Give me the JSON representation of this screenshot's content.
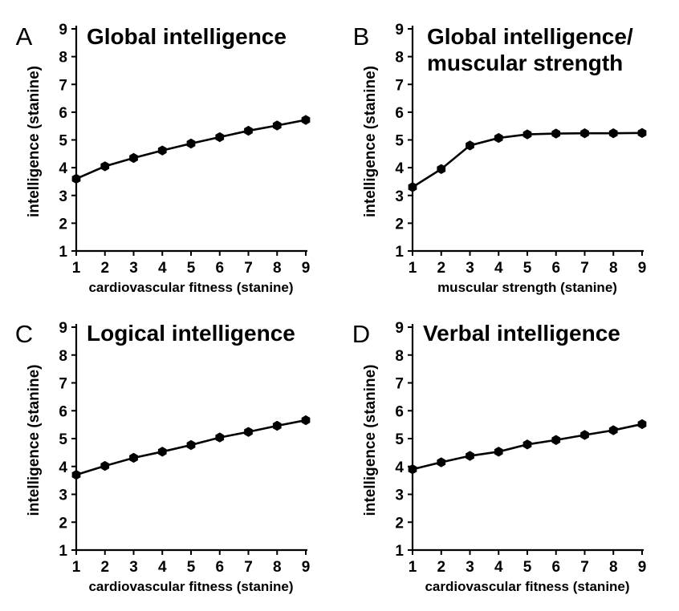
{
  "chart_data": [
    {
      "panel": "A",
      "type": "line",
      "title": [
        "Global intelligence"
      ],
      "xlabel": "cardiovascular fitness (stanine)",
      "ylabel": "intelligence (stanine)",
      "x": [
        1,
        2,
        3,
        4,
        5,
        6,
        7,
        8,
        9
      ],
      "xlim": [
        1,
        9
      ],
      "ylim": [
        1,
        9
      ],
      "yticks": [
        1,
        2,
        3,
        4,
        5,
        6,
        7,
        8,
        9
      ],
      "series": [
        {
          "values": [
            3.6,
            4.05,
            4.35,
            4.62,
            4.87,
            5.1,
            5.33,
            5.52,
            5.72
          ]
        }
      ],
      "grid": false
    },
    {
      "panel": "B",
      "type": "line",
      "title": [
        "Global intelligence/",
        "muscular strength"
      ],
      "xlabel": "muscular strength (stanine)",
      "ylabel": "intelligence (stanine)",
      "x": [
        1,
        2,
        3,
        4,
        5,
        6,
        7,
        8,
        9
      ],
      "xlim": [
        1,
        9
      ],
      "ylim": [
        1,
        9
      ],
      "yticks": [
        1,
        2,
        3,
        4,
        5,
        6,
        7,
        8,
        9
      ],
      "series": [
        {
          "values": [
            3.3,
            3.95,
            4.8,
            5.07,
            5.2,
            5.23,
            5.24,
            5.24,
            5.25
          ]
        }
      ],
      "grid": false
    },
    {
      "panel": "C",
      "type": "line",
      "title": [
        "Logical intelligence"
      ],
      "xlabel": "cardiovascular fitness (stanine)",
      "ylabel": "intelligence (stanine)",
      "x": [
        1,
        2,
        3,
        4,
        5,
        6,
        7,
        8,
        9
      ],
      "xlim": [
        1,
        9
      ],
      "ylim": [
        1,
        9
      ],
      "yticks": [
        1,
        2,
        3,
        4,
        5,
        6,
        7,
        8,
        9
      ],
      "series": [
        {
          "values": [
            3.7,
            4.02,
            4.31,
            4.53,
            4.77,
            5.04,
            5.24,
            5.46,
            5.66
          ]
        }
      ],
      "grid": false
    },
    {
      "panel": "D",
      "type": "line",
      "title": [
        "Verbal intelligence"
      ],
      "xlabel": "cardiovascular fitness (stanine)",
      "ylabel": "intelligence (stanine)",
      "x": [
        1,
        2,
        3,
        4,
        5,
        6,
        7,
        8,
        9
      ],
      "xlim": [
        1,
        9
      ],
      "ylim": [
        1,
        9
      ],
      "yticks": [
        1,
        2,
        3,
        4,
        5,
        6,
        7,
        8,
        9
      ],
      "series": [
        {
          "values": [
            3.9,
            4.15,
            4.38,
            4.53,
            4.79,
            4.95,
            5.13,
            5.3,
            5.52
          ]
        }
      ],
      "grid": false
    }
  ]
}
